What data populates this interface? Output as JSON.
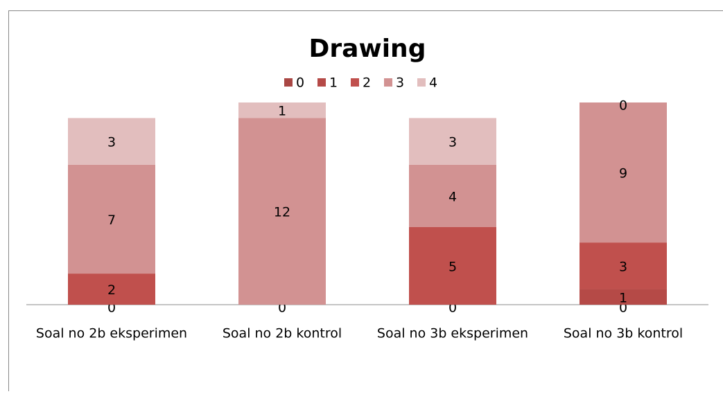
{
  "chart_data": {
    "type": "stacked_bar",
    "title": "Drawing",
    "categories": [
      "Soal no 2b eksperimen",
      "Soal no 2b kontrol",
      "Soal no 3b eksperimen",
      "Soal no 3b kontrol"
    ],
    "series": [
      {
        "name": "0",
        "color": "#a94744",
        "values": [
          0,
          0,
          0,
          0
        ]
      },
      {
        "name": "1",
        "color": "#b54a47",
        "values": [
          null,
          null,
          null,
          1
        ]
      },
      {
        "name": "2",
        "color": "#c0504d",
        "values": [
          2,
          null,
          5,
          3
        ]
      },
      {
        "name": "3",
        "color": "#d29292",
        "values": [
          7,
          12,
          4,
          9
        ]
      },
      {
        "name": "4",
        "color": "#e2bebe",
        "values": [
          3,
          1,
          3,
          0
        ]
      }
    ],
    "ylim": [
      0,
      13
    ],
    "legend": "top"
  }
}
